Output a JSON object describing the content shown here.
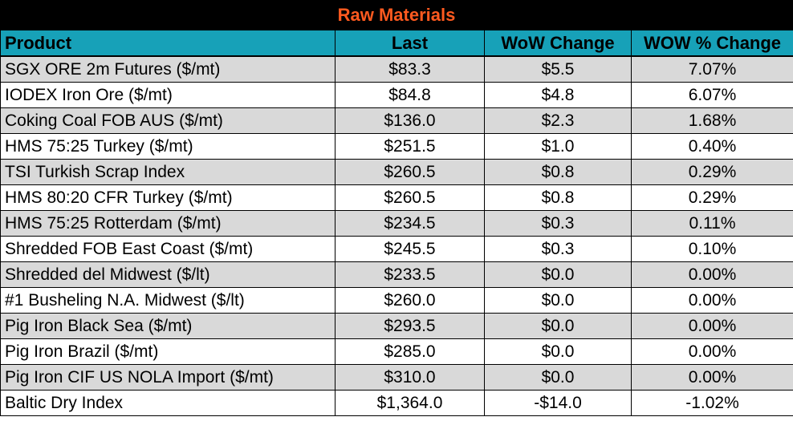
{
  "title": "Raw Materials",
  "columns": [
    "Product",
    "Last",
    "WoW Change",
    "WOW % Change"
  ],
  "rows": [
    {
      "product": "SGX ORE 2m Futures ($/mt)",
      "last": "$83.3",
      "wow": "$5.5",
      "pct": "7.07%"
    },
    {
      "product": "IODEX  Iron Ore ($/mt)",
      "last": "$84.8",
      "wow": "$4.8",
      "pct": "6.07%"
    },
    {
      "product": "Coking Coal FOB AUS ($/mt)",
      "last": "$136.0",
      "wow": "$2.3",
      "pct": "1.68%"
    },
    {
      "product": "HMS 75:25 Turkey ($/mt)",
      "last": "$251.5",
      "wow": "$1.0",
      "pct": "0.40%"
    },
    {
      "product": "TSI Turkish Scrap Index",
      "last": "$260.5",
      "wow": "$0.8",
      "pct": "0.29%"
    },
    {
      "product": "HMS 80:20 CFR Turkey ($/mt)",
      "last": "$260.5",
      "wow": "$0.8",
      "pct": "0.29%"
    },
    {
      "product": "HMS 75:25 Rotterdam ($/mt)",
      "last": "$234.5",
      "wow": "$0.3",
      "pct": "0.11%"
    },
    {
      "product": "Shredded FOB East Coast ($/mt)",
      "last": "$245.5",
      "wow": "$0.3",
      "pct": "0.10%"
    },
    {
      "product": "Shredded del  Midwest ($/lt)",
      "last": "$233.5",
      "wow": "$0.0",
      "pct": "0.00%"
    },
    {
      "product": "#1 Busheling N.A. Midwest ($/lt)",
      "last": "$260.0",
      "wow": "$0.0",
      "pct": "0.00%"
    },
    {
      "product": "Pig Iron Black Sea ($/mt)",
      "last": "$293.5",
      "wow": "$0.0",
      "pct": "0.00%"
    },
    {
      "product": "Pig Iron Brazil ($/mt)",
      "last": "$285.0",
      "wow": "$0.0",
      "pct": "0.00%"
    },
    {
      "product": "Pig Iron CIF US NOLA Import ($/mt)",
      "last": "$310.0",
      "wow": "$0.0",
      "pct": "0.00%"
    },
    {
      "product": "Baltic Dry Index",
      "last": "$1,364.0",
      "wow": "-$14.0",
      "pct": "-1.02%"
    }
  ],
  "colors": {
    "title_background": "#000000",
    "title_text": "#ff5a1f",
    "header_background": "#17a1b8",
    "row_shaded": "#d9d9d9",
    "row_plain": "#ffffff"
  }
}
